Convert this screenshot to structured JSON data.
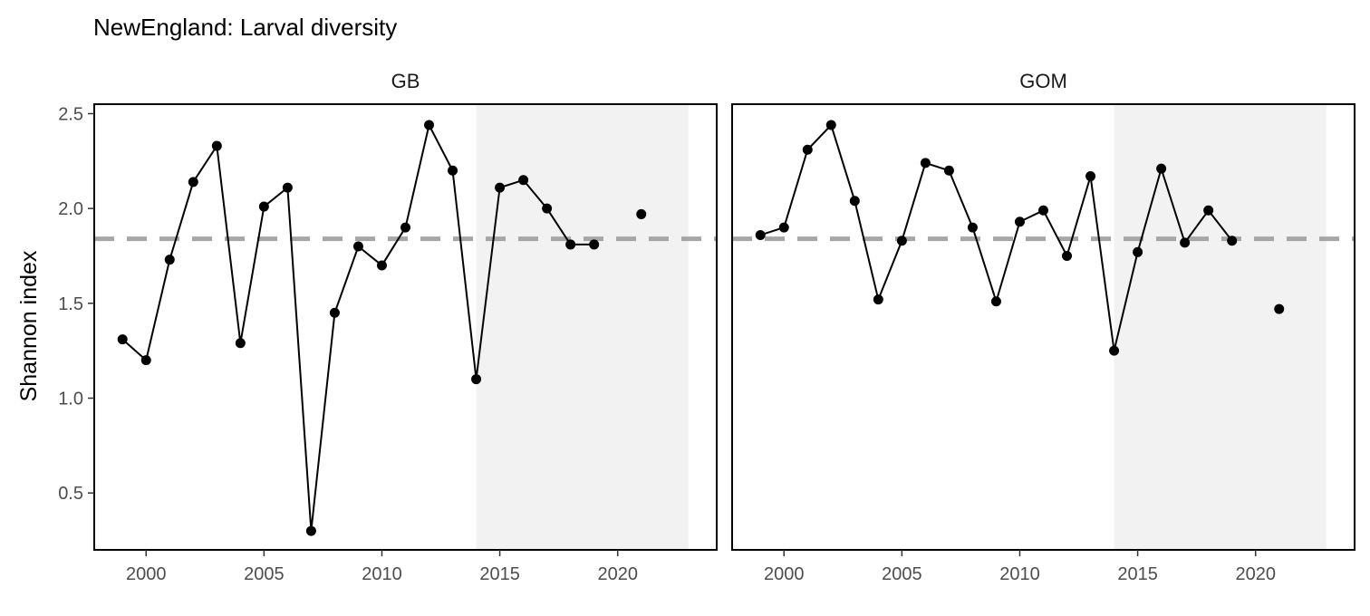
{
  "chart_data": {
    "type": "line",
    "title": "NewEngland: Larval diversity",
    "ylabel": "Shannon index",
    "xlabel": "",
    "xlim": [
      1997.8,
      2024.2
    ],
    "ylim": [
      0.2,
      2.55
    ],
    "x_ticks": [
      2000,
      2005,
      2010,
      2015,
      2020
    ],
    "y_ticks": [
      0.5,
      1.0,
      1.5,
      2.0,
      2.5
    ],
    "y_tick_labels": [
      "0.5",
      "1.0",
      "1.5",
      "2.0",
      "2.5"
    ],
    "reference_line": 1.84,
    "highlight_range": [
      2014,
      2023
    ],
    "grid": false,
    "colors": {
      "points": "#000000",
      "line": "#000000",
      "reference_line": "#a6a6a6",
      "highlight": "#f2f2f2",
      "frame": "#000000"
    },
    "panels": [
      {
        "name": "GB",
        "x": [
          1999,
          2000,
          2001,
          2002,
          2003,
          2004,
          2005,
          2006,
          2007,
          2008,
          2009,
          2010,
          2011,
          2012,
          2013,
          2014,
          2015,
          2016,
          2017,
          2018,
          2019,
          2021
        ],
        "y": [
          1.31,
          1.2,
          1.73,
          2.14,
          2.33,
          1.29,
          2.01,
          2.11,
          0.3,
          1.45,
          1.8,
          1.7,
          1.9,
          2.44,
          2.2,
          1.1,
          2.11,
          2.15,
          2.0,
          1.81,
          1.81,
          1.97
        ],
        "connected_through": 2019
      },
      {
        "name": "GOM",
        "x": [
          1999,
          2000,
          2001,
          2002,
          2003,
          2004,
          2005,
          2006,
          2007,
          2008,
          2009,
          2010,
          2011,
          2012,
          2013,
          2014,
          2015,
          2016,
          2017,
          2018,
          2019,
          2021
        ],
        "y": [
          1.86,
          1.9,
          2.31,
          2.44,
          2.04,
          1.52,
          1.83,
          2.24,
          2.2,
          1.9,
          1.51,
          1.93,
          1.99,
          1.75,
          2.17,
          1.25,
          1.77,
          2.21,
          1.82,
          1.99,
          1.83,
          1.47
        ],
        "connected_through": 2019
      }
    ]
  }
}
